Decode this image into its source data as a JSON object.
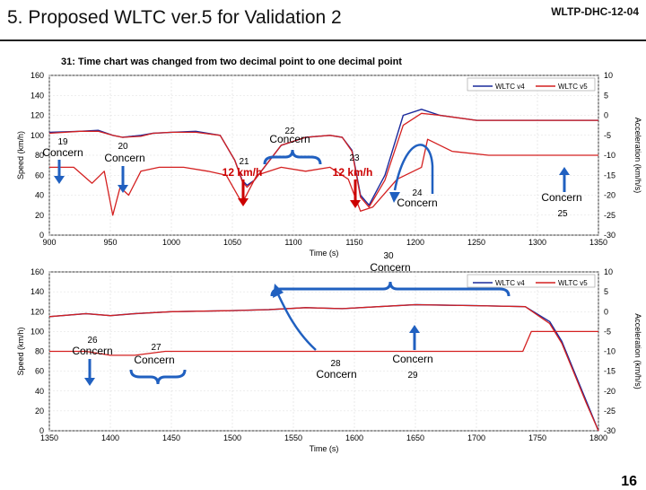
{
  "slide": {
    "title": "5. Proposed WLTC ver.5 for Validation 2",
    "doc_id": "WLTP-DHC-12-04",
    "subtitle": "31: Time chart was changed from two decimal point to one decimal point",
    "page_number": "16"
  },
  "colors": {
    "v4": "#1a2a9c",
    "v5": "#d42020",
    "arrow_blue": "#2060c0",
    "arrow_red": "#cc0000"
  },
  "chart_data": [
    {
      "type": "line",
      "title": "",
      "xlabel": "Time (s)",
      "ylabel": "Speed (km/h)",
      "y2label": "Acceleration (km/h/s)",
      "xlim": [
        900,
        1350
      ],
      "ylim": [
        0,
        160
      ],
      "y2lim": [
        -30,
        10
      ],
      "xticks": [
        "900",
        "950",
        "1000",
        "1050",
        "1100",
        "1150",
        "1200",
        "1250",
        "1300",
        "1350"
      ],
      "yticks": [
        "0",
        "20",
        "40",
        "60",
        "80",
        "100",
        "120",
        "140",
        "160"
      ],
      "y2ticks": [
        "-30",
        "-25",
        "-20",
        "-15",
        "-10",
        "-5",
        "0",
        "5",
        "10"
      ],
      "legend": [
        "WLTC v4",
        "WLTC v5"
      ],
      "series": [
        {
          "name": "WLTC v4 speed",
          "x": [
            900,
            925,
            940,
            952,
            960,
            975,
            985,
            1000,
            1020,
            1040,
            1052,
            1058,
            1062,
            1068,
            1090,
            1110,
            1130,
            1140,
            1148,
            1155,
            1162,
            1175,
            1190,
            1205,
            1220,
            1250,
            1300,
            1350
          ],
          "y": [
            103,
            104,
            105,
            100,
            98,
            100,
            102,
            103,
            104,
            100,
            75,
            55,
            50,
            55,
            90,
            98,
            100,
            98,
            85,
            40,
            30,
            60,
            120,
            126,
            120,
            115,
            115,
            115
          ]
        },
        {
          "name": "WLTC v5 speed",
          "x": [
            900,
            925,
            940,
            952,
            960,
            975,
            985,
            1000,
            1020,
            1040,
            1052,
            1058,
            1062,
            1068,
            1090,
            1110,
            1130,
            1140,
            1148,
            1155,
            1162,
            1175,
            1190,
            1205,
            1220,
            1250,
            1300,
            1350
          ],
          "y": [
            102,
            104,
            104,
            100,
            98,
            99,
            102,
            103,
            103,
            100,
            75,
            54,
            48,
            55,
            90,
            98,
            100,
            98,
            84,
            38,
            28,
            55,
            110,
            122,
            120,
            115,
            115,
            115
          ]
        },
        {
          "name": "Acceleration",
          "x": [
            900,
            920,
            935,
            945,
            952,
            958,
            965,
            975,
            990,
            1010,
            1030,
            1045,
            1058,
            1070,
            1090,
            1110,
            1130,
            1145,
            1155,
            1165,
            1185,
            1205,
            1210,
            1230,
            1260,
            1300,
            1350
          ],
          "y": [
            -13,
            -13,
            -17,
            -14,
            -25,
            -18,
            -20,
            -14,
            -13,
            -13,
            -14,
            -15,
            -22,
            -15,
            -13,
            -14,
            -13,
            -16,
            -24,
            -23,
            -16,
            -13,
            -6,
            -9,
            -10,
            -10,
            -10
          ]
        }
      ],
      "annotations": [
        {
          "number": "19",
          "label": "Concern"
        },
        {
          "number": "20",
          "label": "Concern"
        },
        {
          "number": "21",
          "label": "12 km/h"
        },
        {
          "number": "22",
          "label": "Concern"
        },
        {
          "number": "23",
          "label": "12 km/h"
        },
        {
          "number": "24",
          "label": "Concern"
        },
        {
          "number": "25",
          "label": "Concern"
        }
      ]
    },
    {
      "type": "line",
      "title": "",
      "xlabel": "Time (s)",
      "ylabel": "Speed (km/h)",
      "y2label": "Acceleration (km/h/s)",
      "xlim": [
        1350,
        1800
      ],
      "ylim": [
        0,
        160
      ],
      "y2lim": [
        -30,
        10
      ],
      "xticks": [
        "1350",
        "1400",
        "1450",
        "1500",
        "1550",
        "1600",
        "1650",
        "1700",
        "1750",
        "1800"
      ],
      "yticks": [
        "0",
        "20",
        "40",
        "60",
        "80",
        "100",
        "120",
        "140",
        "160"
      ],
      "y2ticks": [
        "-30",
        "-25",
        "-20",
        "-15",
        "-10",
        "-5",
        "0",
        "5",
        "10"
      ],
      "legend": [
        "WLTC v4",
        "WLTC v5"
      ],
      "series": [
        {
          "name": "WLTC v4 speed",
          "x": [
            1350,
            1380,
            1400,
            1420,
            1450,
            1500,
            1530,
            1560,
            1590,
            1620,
            1650,
            1700,
            1740,
            1760,
            1770,
            1780,
            1790,
            1800
          ],
          "y": [
            115,
            118,
            116,
            118,
            120,
            121,
            122,
            124,
            123,
            125,
            127,
            126,
            125,
            110,
            90,
            60,
            30,
            0
          ]
        },
        {
          "name": "WLTC v5 speed",
          "x": [
            1350,
            1380,
            1400,
            1420,
            1450,
            1500,
            1530,
            1560,
            1590,
            1620,
            1650,
            1700,
            1740,
            1760,
            1770,
            1780,
            1790,
            1800
          ],
          "y": [
            115,
            118,
            116,
            118,
            120,
            121,
            122,
            124,
            123,
            125,
            127,
            126,
            125,
            108,
            88,
            58,
            28,
            0
          ]
        },
        {
          "name": "Acceleration",
          "x": [
            1350,
            1380,
            1400,
            1420,
            1445,
            1480,
            1520,
            1545,
            1570,
            1600,
            1640,
            1700,
            1738,
            1745,
            1770,
            1800
          ],
          "y": [
            -10,
            -10,
            -11,
            -11,
            -10,
            -10,
            -10,
            -10,
            -10,
            -10,
            -10,
            -10,
            -10,
            -5,
            -5,
            -5
          ]
        }
      ],
      "annotations": [
        {
          "number": "26",
          "label": "Concern"
        },
        {
          "number": "27",
          "label": "Concern"
        },
        {
          "number": "28",
          "label": "Concern"
        },
        {
          "number": "29",
          "label": "Concern"
        },
        {
          "number": "30",
          "label": "Concern"
        }
      ]
    }
  ]
}
